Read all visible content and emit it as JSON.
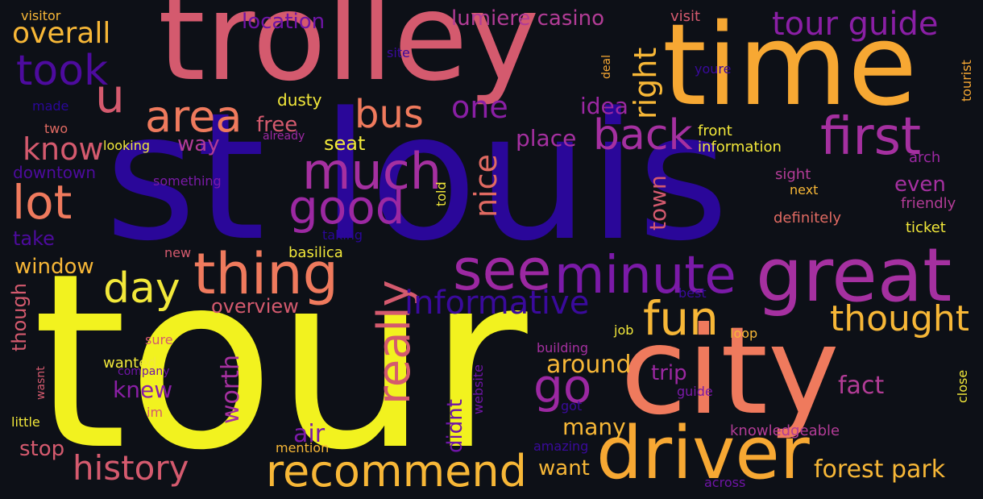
{
  "words": [
    {
      "text": "st louis",
      "color": "#2a0799"
    },
    {
      "text": "tour",
      "color": "#f2f21f"
    },
    {
      "text": "trolley",
      "color": "#d45a6e"
    },
    {
      "text": "time",
      "color": "#f7a833"
    },
    {
      "text": "city",
      "color": "#ef7a5d"
    },
    {
      "text": "great",
      "color": "#a530a0"
    },
    {
      "text": "driver",
      "color": "#f7a833"
    },
    {
      "text": "first",
      "color": "#a530a0"
    },
    {
      "text": "minute",
      "color": "#7b1aa8"
    },
    {
      "text": "thing",
      "color": "#ef7a5d"
    },
    {
      "text": "recommend",
      "color": "#f7b737"
    },
    {
      "text": "see",
      "color": "#9c28a2"
    },
    {
      "text": "much",
      "color": "#a530a0"
    },
    {
      "text": "lot",
      "color": "#ef7a5d"
    },
    {
      "text": "good",
      "color": "#9c28a2"
    },
    {
      "text": "day",
      "color": "#f2e83a"
    },
    {
      "text": "fun",
      "color": "#f7b737"
    },
    {
      "text": "history",
      "color": "#d45a6e"
    },
    {
      "text": "area",
      "color": "#ef7a5d"
    },
    {
      "text": "took",
      "color": "#4d0b9e"
    },
    {
      "text": "u",
      "color": "#d45a6e"
    },
    {
      "text": "really",
      "color": "#d45a6e"
    },
    {
      "text": "go",
      "color": "#9c28a2"
    },
    {
      "text": "back",
      "color": "#a530a0"
    },
    {
      "text": "bus",
      "color": "#ef7a5d"
    },
    {
      "text": "informative",
      "color": "#3a0a9c"
    },
    {
      "text": "thought",
      "color": "#f7b737"
    },
    {
      "text": "tour guide",
      "color": "#8a1fa5"
    },
    {
      "text": "overall",
      "color": "#f7b737"
    },
    {
      "text": "forest park",
      "color": "#f7b737"
    },
    {
      "text": "know",
      "color": "#d45a6e"
    },
    {
      "text": "one",
      "color": "#8a1fa5"
    },
    {
      "text": "right",
      "color": "#f7b737"
    },
    {
      "text": "nice",
      "color": "#e06a62"
    },
    {
      "text": "location",
      "color": "#6f15a6"
    },
    {
      "text": "lumiere casino",
      "color": "#b23c96"
    },
    {
      "text": "idea",
      "color": "#9c28a2"
    },
    {
      "text": "free",
      "color": "#d45a6e"
    },
    {
      "text": "place",
      "color": "#a530a0"
    },
    {
      "text": "way",
      "color": "#b23c96"
    },
    {
      "text": "seat",
      "color": "#f2e83a"
    },
    {
      "text": "dusty",
      "color": "#f2e83a"
    },
    {
      "text": "town",
      "color": "#d45a6e"
    },
    {
      "text": "even",
      "color": "#a530a0"
    },
    {
      "text": "fact",
      "color": "#b23c96"
    },
    {
      "text": "many",
      "color": "#f7b737"
    },
    {
      "text": "want",
      "color": "#f7b737"
    },
    {
      "text": "around",
      "color": "#f7b737"
    },
    {
      "text": "trip",
      "color": "#9c28a2"
    },
    {
      "text": "worth",
      "color": "#a530a0"
    },
    {
      "text": "air",
      "color": "#7b1aa8"
    },
    {
      "text": "didnt",
      "color": "#6f15a6"
    },
    {
      "text": "knew",
      "color": "#8a1fa5"
    },
    {
      "text": "stop",
      "color": "#d45a6e"
    },
    {
      "text": "overview",
      "color": "#d45a6e"
    },
    {
      "text": "window",
      "color": "#f7b737"
    },
    {
      "text": "take",
      "color": "#4d0b9e"
    },
    {
      "text": "downtown",
      "color": "#4d0b9e"
    },
    {
      "text": "though",
      "color": "#d45a6e"
    },
    {
      "text": "visitor",
      "color": "#f7b737"
    },
    {
      "text": "made",
      "color": "#2a0799"
    },
    {
      "text": "two",
      "color": "#e06a62"
    },
    {
      "text": "looking",
      "color": "#f2e83a"
    },
    {
      "text": "something",
      "color": "#7b1aa8"
    },
    {
      "text": "already",
      "color": "#9c28a2"
    },
    {
      "text": "site",
      "color": "#3a0a9c"
    },
    {
      "text": "visit",
      "color": "#d45a6e"
    },
    {
      "text": "deal",
      "color": "#f7a833"
    },
    {
      "text": "youre",
      "color": "#3a0a9c"
    },
    {
      "text": "tourist",
      "color": "#f7a833"
    },
    {
      "text": "front",
      "color": "#f2e83a"
    },
    {
      "text": "information",
      "color": "#f2e83a"
    },
    {
      "text": "arch",
      "color": "#9c28a2"
    },
    {
      "text": "sight",
      "color": "#b23c96"
    },
    {
      "text": "next",
      "color": "#f7b737"
    },
    {
      "text": "friendly",
      "color": "#b23c96"
    },
    {
      "text": "definitely",
      "color": "#e06a62"
    },
    {
      "text": "ticket",
      "color": "#f2e83a"
    },
    {
      "text": "told",
      "color": "#f2e83a"
    },
    {
      "text": "taking",
      "color": "#2a0799"
    },
    {
      "text": "basilica",
      "color": "#f2e83a"
    },
    {
      "text": "new",
      "color": "#d45a6e"
    },
    {
      "text": "best",
      "color": "#3a0a9c"
    },
    {
      "text": "job",
      "color": "#f2e83a"
    },
    {
      "text": "loop",
      "color": "#f7b737"
    },
    {
      "text": "building",
      "color": "#a530a0"
    },
    {
      "text": "sure",
      "color": "#d45a6e"
    },
    {
      "text": "wanted",
      "color": "#f2e83a"
    },
    {
      "text": "company",
      "color": "#6f15a6"
    },
    {
      "text": "wasnt",
      "color": "#d45a6e"
    },
    {
      "text": "im",
      "color": "#d45a6e"
    },
    {
      "text": "little",
      "color": "#f2e83a"
    },
    {
      "text": "website",
      "color": "#6f15a6"
    },
    {
      "text": "got",
      "color": "#3a0a9c"
    },
    {
      "text": "guide",
      "color": "#7b1aa8"
    },
    {
      "text": "close",
      "color": "#f2e83a"
    },
    {
      "text": "knowledgeable",
      "color": "#b23c96"
    },
    {
      "text": "mention",
      "color": "#f7b737"
    },
    {
      "text": "amazing",
      "color": "#3a0a9c"
    },
    {
      "text": "across",
      "color": "#6f15a6"
    }
  ]
}
